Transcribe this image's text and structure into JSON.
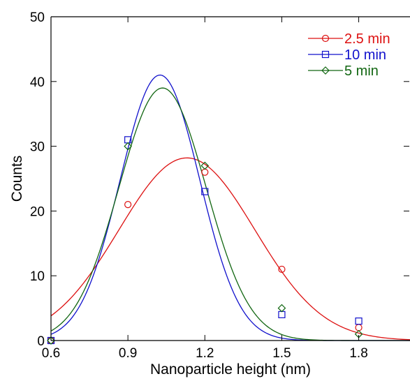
{
  "chart_data": {
    "type": "scatter",
    "xlabel": "Nanoparticle height (nm)",
    "ylabel": "Counts",
    "xlim": [
      0.6,
      2.0
    ],
    "ylim": [
      0,
      50
    ],
    "xticks": [
      "0.6",
      "0.9",
      "1.2",
      "1.5",
      "1.8"
    ],
    "xtick_values": [
      0.6,
      0.9,
      1.2,
      1.5,
      1.8
    ],
    "yticks": [
      "0",
      "10",
      "20",
      "30",
      "40",
      "50"
    ],
    "ytick_values": [
      0,
      10,
      20,
      30,
      40,
      50
    ],
    "grid": false,
    "legend_position": "top-right",
    "series": [
      {
        "name": "2.5 min",
        "color": "#dd1111",
        "marker": "circle",
        "x": [
          0.6,
          0.9,
          1.2,
          1.5,
          1.8
        ],
        "y": [
          0,
          21,
          26,
          11,
          2
        ],
        "fit": {
          "amplitude": 28.2,
          "center": 1.13,
          "sigma": 0.265
        }
      },
      {
        "name": "10 min",
        "color": "#1111cc",
        "marker": "square",
        "x": [
          0.6,
          0.9,
          1.2,
          1.5,
          1.8
        ],
        "y": [
          0,
          31,
          23,
          4,
          3
        ],
        "fit": {
          "amplitude": 41,
          "center": 1.025,
          "sigma": 0.155
        }
      },
      {
        "name": "5 min",
        "color": "#116611",
        "marker": "diamond",
        "x": [
          0.6,
          0.9,
          1.2,
          1.5,
          1.8
        ],
        "y": [
          0,
          30,
          27,
          5,
          1
        ],
        "fit": {
          "amplitude": 39,
          "center": 1.035,
          "sigma": 0.17
        }
      }
    ]
  }
}
